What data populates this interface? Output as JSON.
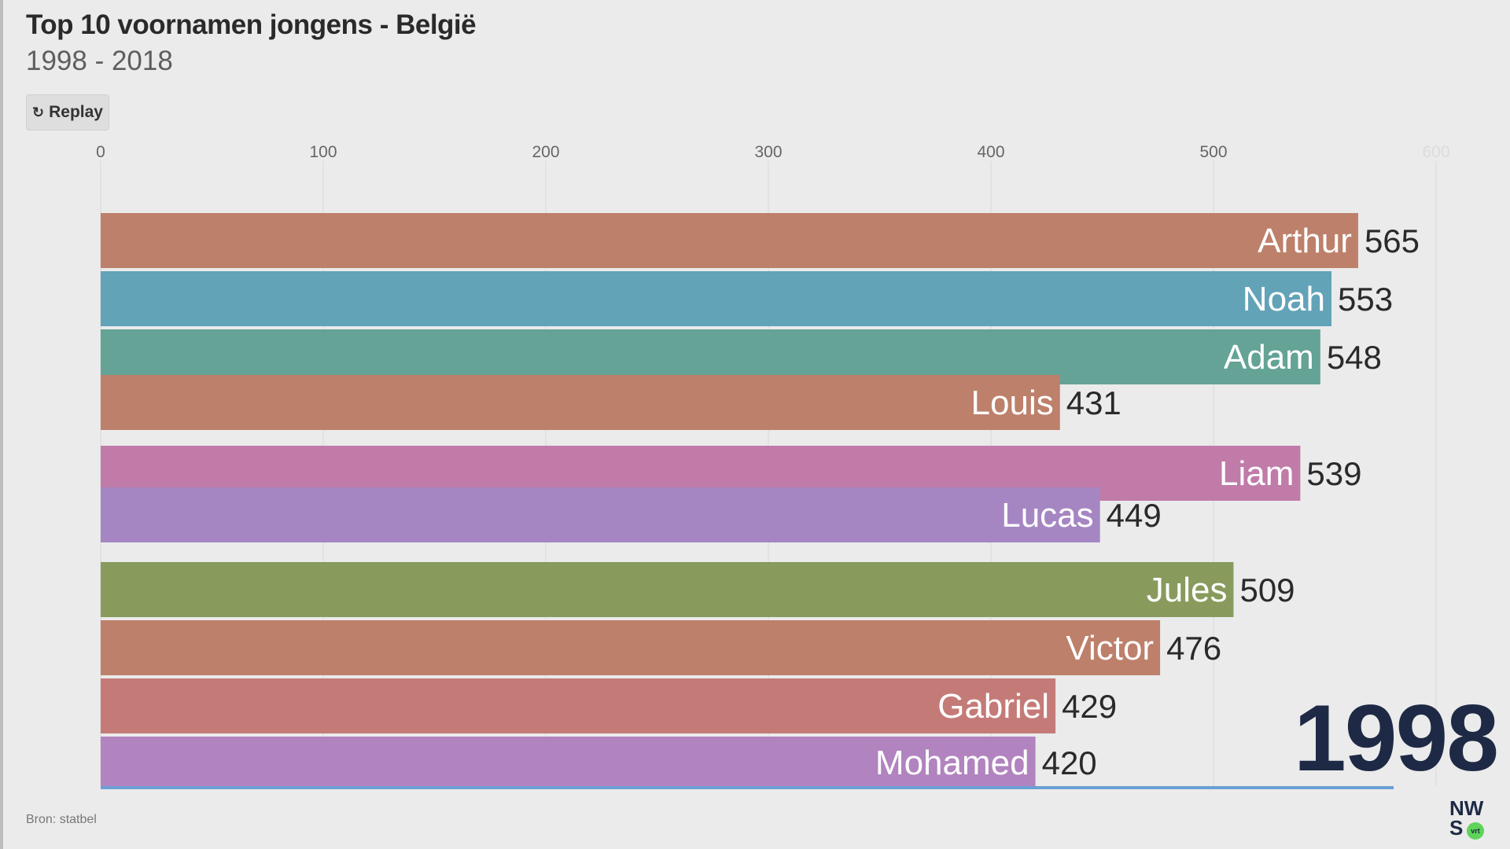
{
  "header": {
    "title": "Top 10 voornamen jongens - België",
    "subtitle": "1998 - 2018"
  },
  "controls": {
    "replay_icon": "↻",
    "replay_label": "Replay"
  },
  "chart_data": {
    "type": "bar",
    "orientation": "horizontal",
    "xlim": [
      0,
      600
    ],
    "x_ticks": [
      0,
      100,
      200,
      300,
      400,
      500,
      600
    ],
    "grid": true,
    "bars": [
      {
        "name": "Arthur",
        "value": 565,
        "color": "#bd806b"
      },
      {
        "name": "Noah",
        "value": 553,
        "color": "#62a3b8"
      },
      {
        "name": "Adam",
        "value": 548,
        "color": "#64a396"
      },
      {
        "name": "Louis",
        "value": 431,
        "color": "#bd806b"
      },
      {
        "name": "Liam",
        "value": 539,
        "color": "#c07ba9"
      },
      {
        "name": "Lucas",
        "value": 449,
        "color": "#a586c2"
      },
      {
        "name": "Jules",
        "value": 509,
        "color": "#889b5d"
      },
      {
        "name": "Victor",
        "value": 476,
        "color": "#bd806b"
      },
      {
        "name": "Gabriel",
        "value": 429,
        "color": "#c47b78"
      },
      {
        "name": "Mohamed",
        "value": 420,
        "color": "#b183bf"
      }
    ],
    "timeline_progress": 0.01
  },
  "year_label": "1998",
  "footer": {
    "source": "Bron: statbel",
    "logo_text_top": "NW",
    "logo_text_bottom": "S",
    "logo_badge": "vrt"
  },
  "colors": {
    "background": "#ebebeb",
    "year": "#1e2a45",
    "timeline": "#6b9fd4"
  }
}
